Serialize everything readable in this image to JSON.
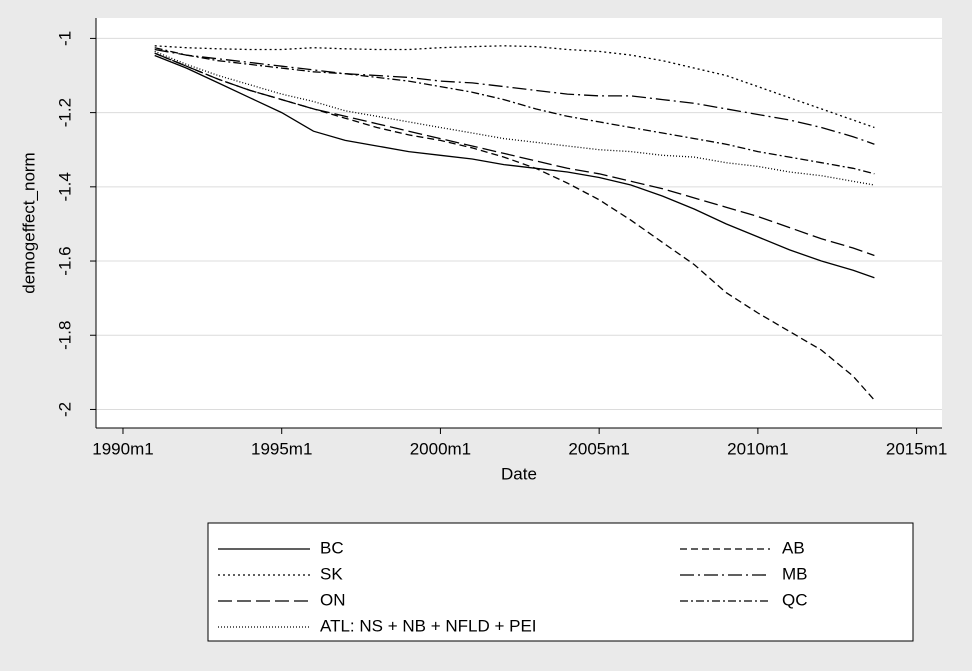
{
  "chart_data": {
    "type": "line",
    "ylabel": "demogeffect_norm",
    "xlabel": "Date",
    "x": [
      1991,
      1992,
      1993,
      1994,
      1995,
      1996,
      1997,
      1998,
      1999,
      2000,
      2001,
      2002,
      2003,
      2004,
      2005,
      2006,
      2007,
      2008,
      2009,
      2010,
      2011,
      2012,
      2013,
      2013.67
    ],
    "series": [
      {
        "name": "BC",
        "color": "#000000",
        "dash": "none",
        "values": [
          -1.046,
          -1.08,
          -1.12,
          -1.16,
          -1.2,
          -1.25,
          -1.275,
          -1.29,
          -1.305,
          -1.315,
          -1.325,
          -1.34,
          -1.35,
          -1.36,
          -1.375,
          -1.395,
          -1.425,
          -1.46,
          -1.5,
          -1.535,
          -1.57,
          -1.6,
          -1.625,
          -1.645
        ]
      },
      {
        "name": "AB",
        "color": "#000000",
        "dash": "7 4",
        "values": [
          -1.04,
          -1.075,
          -1.11,
          -1.14,
          -1.165,
          -1.19,
          -1.215,
          -1.24,
          -1.26,
          -1.275,
          -1.295,
          -1.32,
          -1.35,
          -1.39,
          -1.435,
          -1.49,
          -1.55,
          -1.61,
          -1.685,
          -1.74,
          -1.79,
          -1.84,
          -1.91,
          -1.975
        ]
      },
      {
        "name": "SK",
        "color": "#000000",
        "dash": "2 3",
        "values": [
          -1.02,
          -1.025,
          -1.028,
          -1.03,
          -1.03,
          -1.025,
          -1.028,
          -1.03,
          -1.03,
          -1.025,
          -1.022,
          -1.02,
          -1.022,
          -1.03,
          -1.035,
          -1.045,
          -1.06,
          -1.08,
          -1.1,
          -1.13,
          -1.16,
          -1.19,
          -1.22,
          -1.24
        ]
      },
      {
        "name": "MB",
        "color": "#000000",
        "dash": "14 4 2 4",
        "values": [
          -1.03,
          -1.045,
          -1.055,
          -1.065,
          -1.075,
          -1.085,
          -1.095,
          -1.1,
          -1.105,
          -1.115,
          -1.12,
          -1.13,
          -1.14,
          -1.15,
          -1.155,
          -1.155,
          -1.165,
          -1.175,
          -1.19,
          -1.205,
          -1.22,
          -1.24,
          -1.265,
          -1.285
        ]
      },
      {
        "name": "ON",
        "color": "#000000",
        "dash": "14 5",
        "values": [
          -1.04,
          -1.075,
          -1.11,
          -1.14,
          -1.165,
          -1.19,
          -1.21,
          -1.23,
          -1.25,
          -1.27,
          -1.29,
          -1.31,
          -1.33,
          -1.35,
          -1.365,
          -1.385,
          -1.405,
          -1.43,
          -1.455,
          -1.48,
          -1.51,
          -1.54,
          -1.565,
          -1.585
        ]
      },
      {
        "name": "QC",
        "color": "#000000",
        "dash": "8 3 2 3",
        "values": [
          -1.025,
          -1.045,
          -1.06,
          -1.07,
          -1.08,
          -1.09,
          -1.095,
          -1.105,
          -1.115,
          -1.13,
          -1.145,
          -1.165,
          -1.19,
          -1.21,
          -1.225,
          -1.24,
          -1.255,
          -1.27,
          -1.285,
          -1.305,
          -1.32,
          -1.335,
          -1.35,
          -1.365
        ]
      },
      {
        "name": "ATL: NS + NB + NFLD + PEI",
        "color": "#000000",
        "dash": "1 2",
        "values": [
          -1.035,
          -1.07,
          -1.1,
          -1.125,
          -1.15,
          -1.17,
          -1.195,
          -1.21,
          -1.225,
          -1.24,
          -1.255,
          -1.27,
          -1.28,
          -1.29,
          -1.3,
          -1.305,
          -1.315,
          -1.32,
          -1.335,
          -1.345,
          -1.36,
          -1.37,
          -1.385,
          -1.395
        ]
      }
    ],
    "xlim": [
      1989.15,
      2015.8
    ],
    "ylim": [
      -2.05,
      -0.945
    ],
    "xticks": [
      {
        "value": 1990,
        "label": "1990m1"
      },
      {
        "value": 1995,
        "label": "1995m1"
      },
      {
        "value": 2000,
        "label": "2000m1"
      },
      {
        "value": 2005,
        "label": "2005m1"
      },
      {
        "value": 2010,
        "label": "2010m1"
      },
      {
        "value": 2015,
        "label": "2015m1"
      }
    ],
    "yticks": [
      -1,
      -1.2,
      -1.4,
      -1.6,
      -1.8,
      -2
    ],
    "grid": true
  }
}
